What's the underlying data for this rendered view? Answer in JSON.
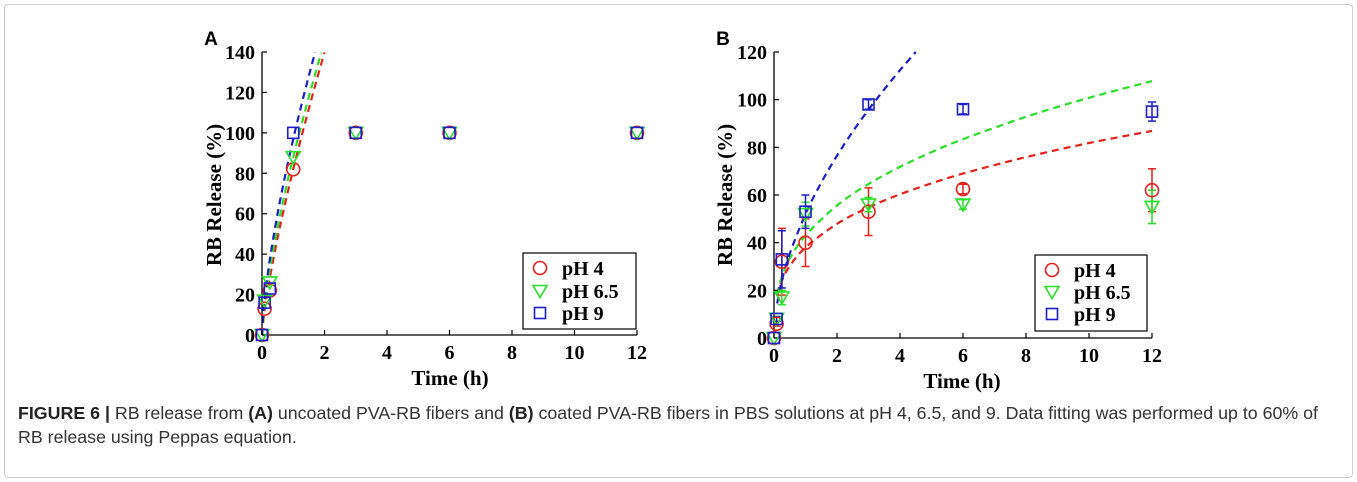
{
  "chart_data": [
    {
      "panel": "A",
      "type": "scatter",
      "xlabel": "Time (h)",
      "ylabel": "RB Release (%)",
      "xlim": [
        0,
        12
      ],
      "ylim": [
        0,
        140
      ],
      "xticks": [
        0,
        2,
        4,
        6,
        8,
        10,
        12
      ],
      "yticks": [
        0,
        20,
        40,
        60,
        80,
        100,
        120,
        140
      ],
      "grid": false,
      "legend_position": "bottom-right",
      "series": [
        {
          "name": "pH 4",
          "marker": "circle",
          "color": "#e3201b",
          "x": [
            0,
            0.083,
            0.25,
            1,
            3,
            6,
            12
          ],
          "y": [
            0,
            13,
            22,
            82,
            100,
            100,
            100
          ]
        },
        {
          "name": "pH 6.5",
          "marker": "triangle-down",
          "color": "#27e027",
          "x": [
            0,
            0.083,
            0.25,
            1,
            3,
            6,
            12
          ],
          "y": [
            0,
            17,
            26,
            88,
            100,
            100,
            100
          ]
        },
        {
          "name": "pH 9",
          "marker": "square",
          "color": "#1d1dc9",
          "x": [
            0,
            0.083,
            0.25,
            1,
            3,
            6,
            12
          ],
          "y": [
            0,
            16,
            23,
            100,
            100,
            100,
            100
          ]
        }
      ],
      "fit_lines": [
        {
          "line_style": "dashed",
          "color": "#e3201b",
          "x": [
            0,
            0.05,
            0.1,
            0.25,
            0.5,
            0.75,
            1,
            1.25,
            1.5,
            1.75,
            2
          ],
          "y": [
            0,
            8.2,
            13.9,
            28.2,
            48.1,
            65.7,
            82,
            97.4,
            112,
            126.2,
            139.8
          ]
        },
        {
          "line_style": "dashed",
          "color": "#27e027",
          "x": [
            0,
            0.05,
            0.1,
            0.25,
            0.5,
            0.75,
            1,
            1.25,
            1.5,
            1.75,
            1.9
          ],
          "y": [
            0,
            10.2,
            16.8,
            32.4,
            53.4,
            71.5,
            88,
            103.3,
            117.8,
            131.7,
            139.7
          ]
        },
        {
          "line_style": "dashed",
          "color": "#1d1dc9",
          "x": [
            0,
            0.05,
            0.1,
            0.25,
            0.5,
            0.75,
            1,
            1.25,
            1.5,
            1.7
          ],
          "y": [
            0,
            12.3,
            19.8,
            37.3,
            60.1,
            79.5,
            97,
            113.1,
            128.3,
            139.9
          ]
        }
      ]
    },
    {
      "panel": "B",
      "type": "scatter",
      "xlabel": "Time (h)",
      "ylabel": "RB Release (%)",
      "xlim": [
        0,
        12
      ],
      "ylim": [
        0,
        120
      ],
      "xticks": [
        0,
        2,
        4,
        6,
        8,
        10,
        12
      ],
      "yticks": [
        0,
        20,
        40,
        60,
        80,
        100,
        120
      ],
      "grid": false,
      "legend_position": "bottom-right",
      "series": [
        {
          "name": "pH 4",
          "marker": "circle",
          "color": "#e3201b",
          "x": [
            0,
            0.083,
            0.25,
            1,
            3,
            6,
            12
          ],
          "y": [
            0,
            6,
            32,
            40,
            53,
            62.5,
            62
          ],
          "error": [
            0,
            1,
            14,
            10,
            10,
            2,
            9
          ]
        },
        {
          "name": "pH 6.5",
          "marker": "triangle-down",
          "color": "#27e027",
          "x": [
            0,
            0.083,
            0.25,
            1,
            3,
            6,
            12
          ],
          "y": [
            0,
            8,
            17,
            52,
            56,
            56,
            55
          ],
          "error": [
            0,
            1,
            3,
            5,
            3,
            2,
            7
          ]
        },
        {
          "name": "pH 9",
          "marker": "square",
          "color": "#1d1dc9",
          "x": [
            0,
            0.083,
            0.25,
            1,
            3,
            6,
            12
          ],
          "y": [
            0,
            8,
            33,
            53,
            98,
            96,
            95
          ],
          "error": [
            0,
            1,
            12,
            7,
            2,
            2,
            4
          ]
        }
      ],
      "fit_lines": [
        {
          "line_style": "dashed",
          "color": "#e3201b",
          "x": [
            0.1,
            0.25,
            0.5,
            1,
            2,
            3,
            4,
            5,
            6,
            8,
            10,
            12
          ],
          "y": [
            17.7,
            24,
            30.2,
            38,
            47.9,
            54.8,
            60.3,
            64.9,
            69,
            75.9,
            81.8,
            86.9
          ]
        },
        {
          "line_style": "dashed",
          "color": "#27e027",
          "x": [
            0.1,
            0.25,
            0.5,
            1,
            2,
            3,
            4,
            5,
            6,
            8,
            10,
            12
          ],
          "y": [
            18.3,
            25.7,
            33.3,
            43,
            55.6,
            64.6,
            71.8,
            78,
            83.4,
            92.8,
            100.8,
            107.8
          ]
        },
        {
          "line_style": "dashed",
          "color": "#1d1dc9",
          "x": [
            0.1,
            0.25,
            0.5,
            1,
            1.5,
            2,
            2.5,
            3,
            3.5,
            4,
            4.5
          ],
          "y": [
            14.5,
            24.1,
            35.4,
            52,
            65.2,
            76.5,
            86.6,
            95.8,
            104.3,
            112.4,
            120
          ]
        }
      ]
    }
  ],
  "caption": {
    "figure_label": "FIGURE 6 |",
    "text_1": " RB release from ",
    "panel_a_ref": "(A)",
    "text_2": " uncoated PVA-RB fibers and ",
    "panel_b_ref": "(B)",
    "text_3": " coated PVA-RB fibers in PBS solutions at pH 4, 6.5, and 9. Data fitting was performed up to 60% of",
    "text_4": "RB release using Peppas equation."
  }
}
